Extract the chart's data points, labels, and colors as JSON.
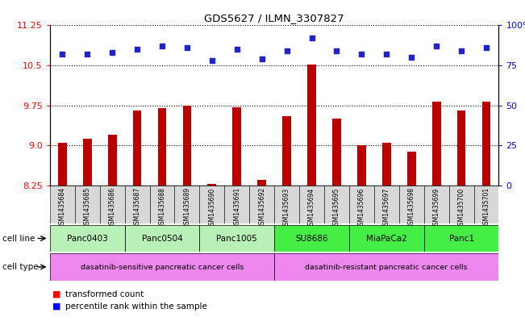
{
  "title": "GDS5627 / ILMN_3307827",
  "samples": [
    "GSM1435684",
    "GSM1435685",
    "GSM1435686",
    "GSM1435687",
    "GSM1435688",
    "GSM1435689",
    "GSM1435690",
    "GSM1435691",
    "GSM1435692",
    "GSM1435693",
    "GSM1435694",
    "GSM1435695",
    "GSM1435696",
    "GSM1435697",
    "GSM1435698",
    "GSM1435699",
    "GSM1435700",
    "GSM1435701"
  ],
  "transformed_count": [
    9.05,
    9.12,
    9.2,
    9.65,
    9.7,
    9.75,
    8.28,
    9.72,
    8.35,
    9.55,
    10.52,
    9.5,
    9.0,
    9.05,
    8.88,
    9.82,
    9.65,
    9.82
  ],
  "percentile_rank": [
    82,
    82,
    83,
    85,
    87,
    86,
    78,
    85,
    79,
    84,
    92,
    84,
    82,
    82,
    80,
    87,
    84,
    86
  ],
  "cell_lines_order": [
    "Panc0403",
    "Panc0504",
    "Panc1005",
    "SU8686",
    "MiaPaCa2",
    "Panc1"
  ],
  "cell_lines": {
    "Panc0403": [
      0,
      2
    ],
    "Panc0504": [
      3,
      5
    ],
    "Panc1005": [
      6,
      8
    ],
    "SU8686": [
      9,
      11
    ],
    "MiaPaCa2": [
      12,
      14
    ],
    "Panc1": [
      15,
      17
    ]
  },
  "cell_line_colors_sensitive": "#b8f0b8",
  "cell_line_colors_resistant": "#44ee44",
  "cell_type_sensitive_label": "dasatinib-sensitive pancreatic cancer cells",
  "cell_type_resistant_label": "dasatinib-resistant pancreatic cancer cells",
  "cell_type_color": "#ee88ee",
  "ylim_left": [
    8.25,
    11.25
  ],
  "yticks_left": [
    8.25,
    9.0,
    9.75,
    10.5,
    11.25
  ],
  "ylim_right": [
    0,
    100
  ],
  "yticks_right": [
    0,
    25,
    50,
    75,
    100
  ],
  "bar_color": "#bb0000",
  "dot_color": "#2222cc",
  "bar_width": 0.35,
  "legend_items": [
    "transformed count",
    "percentile rank within the sample"
  ]
}
